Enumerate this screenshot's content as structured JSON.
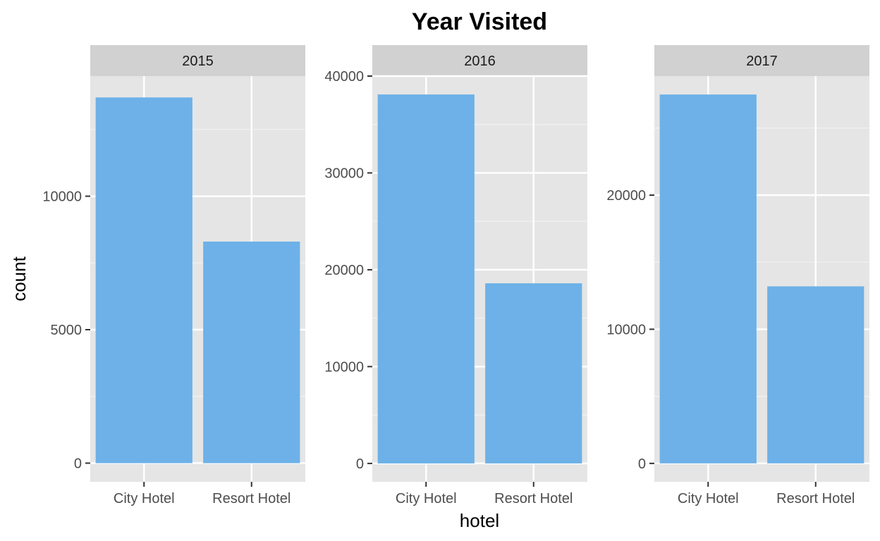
{
  "chart_data": {
    "type": "bar",
    "title": "Year Visited",
    "xlabel": "hotel",
    "ylabel": "count",
    "categories": [
      "City Hotel",
      "Resort Hotel"
    ],
    "facets": [
      {
        "label": "2015",
        "values": [
          13700,
          8300
        ],
        "yticks": [
          0,
          5000,
          10000
        ],
        "ylim": [
          -700,
          14500
        ]
      },
      {
        "label": "2016",
        "values": [
          38100,
          18600
        ],
        "yticks": [
          0,
          10000,
          20000,
          30000,
          40000
        ],
        "ylim": [
          -1900,
          40000
        ]
      },
      {
        "label": "2017",
        "values": [
          27500,
          13200
        ],
        "yticks": [
          0,
          10000,
          20000
        ],
        "ylim": [
          -1375,
          28875
        ]
      }
    ],
    "bar_color": "#6db1e8",
    "panel_color": "#e5e5e5",
    "strip_color": "#d1d1d1",
    "grid": true
  }
}
